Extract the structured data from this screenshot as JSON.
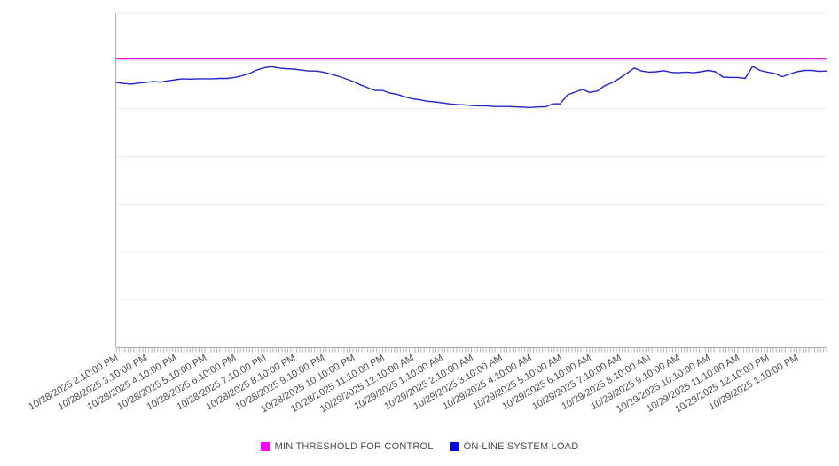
{
  "page": {
    "background": "#ffffff"
  },
  "chart_data": {
    "type": "line",
    "title": "",
    "x_tick_labels": [
      "10/28/2025 2:10:00 PM",
      "10/28/2025 3:10:00 PM",
      "10/28/2025 4:10:00 PM",
      "10/28/2025 5:10:00 PM",
      "10/28/2025 6:10:00 PM",
      "10/28/2025 7:10:00 PM",
      "10/28/2025 8:10:00 PM",
      "10/28/2025 9:10:00 PM",
      "10/28/2025 10:10:00 PM",
      "10/28/2025 11:10:00 PM",
      "10/29/2025 12:10:00 AM",
      "10/29/2025 1:10:00 AM",
      "10/29/2025 2:10:00 AM",
      "10/29/2025 3:10:00 AM",
      "10/29/2025 4:10:00 AM",
      "10/29/2025 5:10:00 AM",
      "10/29/2025 6:10:00 AM",
      "10/29/2025 7:10:00 AM",
      "10/29/2025 8:10:00 AM",
      "10/29/2025 9:10:00 AM",
      "10/29/2025 10:10:00 AM",
      "10/29/2025 11:10:00 AM",
      "10/29/2025 12:10:00 PM",
      "10/29/2025 1:10:00 PM"
    ],
    "x_range": {
      "start": "10/28/2025 2:10:00 PM",
      "end": "10/29/2025 2:10:00 PM"
    },
    "sample_interval_minutes": 15,
    "y_axis": {
      "labels_visible": false,
      "units_note": "y-axis has no visible labels; values below are normalized 0-100 of plot height",
      "ylim": [
        0,
        100
      ],
      "gridline_divisions": 7,
      "grid": true
    },
    "legend_position": "bottom-center",
    "series": [
      {
        "name": "MIN THRESHOLD FOR CONTROL",
        "type": "constant-threshold",
        "color": "#E912E9",
        "value": 86.4
      },
      {
        "name": "ON-LINE SYSTEM LOAD",
        "type": "line",
        "color": "#2424CC",
        "values": [
          79.3,
          79.0,
          78.8,
          79.1,
          79.3,
          79.6,
          79.4,
          79.8,
          80.1,
          80.4,
          80.3,
          80.4,
          80.4,
          80.4,
          80.5,
          80.5,
          80.8,
          81.3,
          82.0,
          83.0,
          83.7,
          84.0,
          83.6,
          83.4,
          83.3,
          83.0,
          82.7,
          82.7,
          82.4,
          81.8,
          81.2,
          80.4,
          79.6,
          78.6,
          77.7,
          76.9,
          76.9,
          76.1,
          75.7,
          75.0,
          74.4,
          74.1,
          73.7,
          73.5,
          73.2,
          72.9,
          72.7,
          72.6,
          72.4,
          72.3,
          72.3,
          72.1,
          72.1,
          72.1,
          72.0,
          71.9,
          71.8,
          72.0,
          72.0,
          72.9,
          72.9,
          75.6,
          76.4,
          77.2,
          76.3,
          76.7,
          78.3,
          79.2,
          80.5,
          82.0,
          83.6,
          82.7,
          82.4,
          82.5,
          82.8,
          82.3,
          82.2,
          82.4,
          82.2,
          82.5,
          82.9,
          82.5,
          80.9,
          80.8,
          80.8,
          80.5,
          84.1,
          82.9,
          82.4,
          82.0,
          81.0,
          81.8,
          82.5,
          82.9,
          82.9,
          82.6,
          82.7
        ]
      }
    ]
  },
  "legend": {
    "items": [
      {
        "label": "MIN THRESHOLD FOR CONTROL",
        "color": "#FF00FF"
      },
      {
        "label": "ON-LINE SYSTEM LOAD",
        "color": "#0000F0"
      }
    ]
  },
  "style_colors": {
    "gridline": "#EBEBEB",
    "axis_line": "#ADADAD",
    "minor_tick": "#B3B3B3",
    "x_label_text": "#4D4D4D"
  }
}
